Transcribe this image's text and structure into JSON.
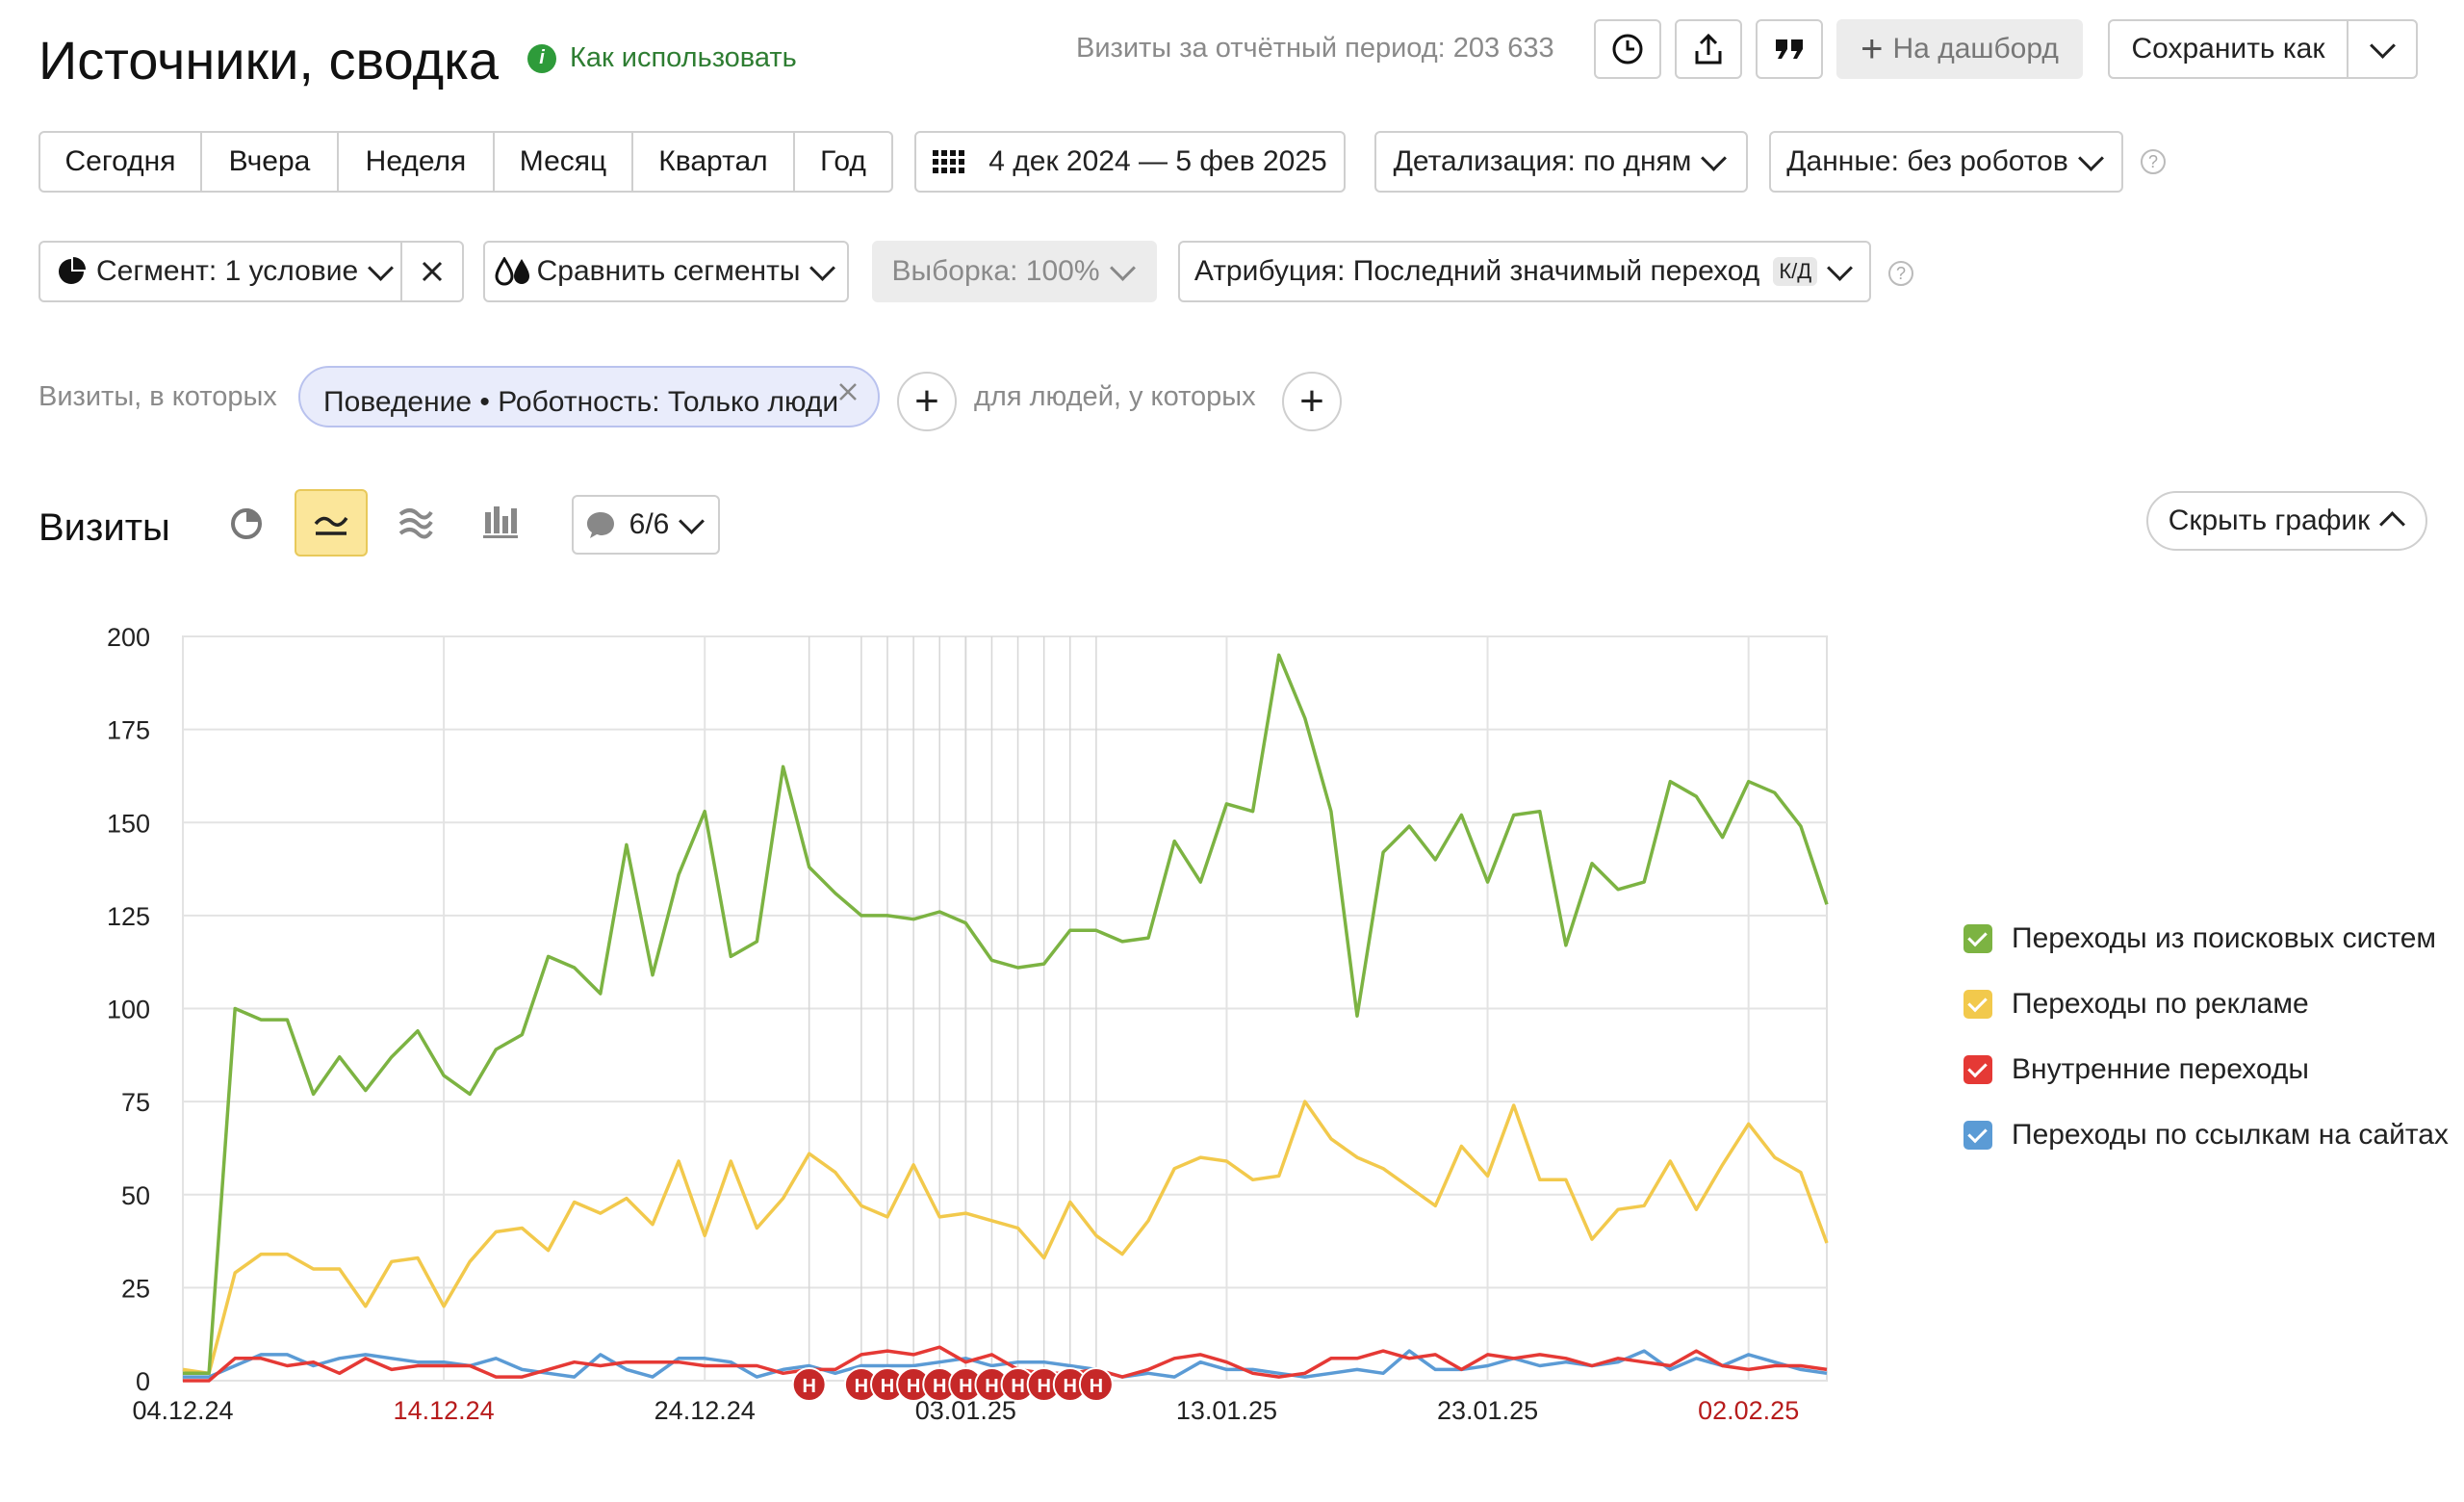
{
  "header": {
    "title": "Источники, сводка",
    "how_to_use": "Как использовать",
    "visits_summary": "Визиты за отчётный период: 203 633",
    "to_dashboard": "На дашборд",
    "save_as": "Сохранить как"
  },
  "period_tabs": [
    "Сегодня",
    "Вчера",
    "Неделя",
    "Месяц",
    "Квартал",
    "Год"
  ],
  "date_range": "4 дек 2024 — 5 фев 2025",
  "detail": "Детализация: по дням",
  "data_filter": "Данные: без роботов",
  "segment": "Сегмент: 1 условие",
  "compare": "Сравнить сегменты",
  "sample": "Выборка: 100%",
  "attribution": "Атрибуция: Последний значимый переход",
  "attribution_badge": "К/Д",
  "filter_row": {
    "prefix": "Визиты, в которых",
    "chip": "Поведение • Роботность: Только люди",
    "middle": "для людей, у которых"
  },
  "chart_header": {
    "title": "Визиты",
    "annotations_count": "6/6",
    "hide_chart": "Скрыть график"
  },
  "colors": {
    "search": "#7cb342",
    "ads": "#f2c94c",
    "internal": "#e53935",
    "links": "#5b9bd5",
    "accent_green": "#2e7d32",
    "holiday": "#c62828"
  },
  "chart_data": {
    "type": "line",
    "x_start": "2024-12-04",
    "x_ticks": [
      "04.12.24",
      "14.12.24",
      "24.12.24",
      "03.01.25",
      "13.01.25",
      "23.01.25",
      "02.02.25"
    ],
    "y_ticks": [
      "0",
      "25",
      "50",
      "75",
      "100",
      "125",
      "150",
      "175",
      "200"
    ],
    "ylim": [
      0,
      200
    ],
    "holiday_marker": "Н",
    "series": [
      {
        "name": "Переходы из поисковых систем",
        "color": "#7cb342",
        "values": [
          2,
          2,
          100,
          97,
          97,
          77,
          87,
          78,
          87,
          94,
          82,
          77,
          89,
          93,
          114,
          111,
          104,
          144,
          109,
          136,
          153,
          114,
          118,
          165,
          138,
          131,
          125,
          125,
          124,
          126,
          123,
          113,
          111,
          112,
          121,
          121,
          118,
          119,
          145,
          134,
          155,
          153,
          195,
          178,
          153,
          98,
          142,
          149,
          140,
          152,
          134,
          152,
          153,
          117,
          139,
          132,
          134,
          161,
          157,
          146,
          161,
          158,
          149,
          128
        ]
      },
      {
        "name": "Переходы по рекламе",
        "color": "#f2c94c",
        "values": [
          3,
          2,
          29,
          34,
          34,
          30,
          30,
          20,
          32,
          33,
          20,
          32,
          40,
          41,
          35,
          48,
          45,
          49,
          42,
          59,
          39,
          59,
          41,
          49,
          61,
          56,
          47,
          44,
          58,
          44,
          45,
          43,
          41,
          33,
          48,
          39,
          34,
          43,
          57,
          60,
          59,
          54,
          55,
          75,
          65,
          60,
          57,
          52,
          47,
          63,
          55,
          74,
          54,
          54,
          38,
          46,
          47,
          59,
          46,
          58,
          69,
          60,
          56,
          37
        ]
      },
      {
        "name": "Внутренние переходы",
        "color": "#e53935",
        "values": [
          0,
          0,
          6,
          6,
          4,
          5,
          2,
          6,
          3,
          4,
          4,
          4,
          1,
          1,
          3,
          5,
          4,
          5,
          5,
          5,
          4,
          4,
          4,
          2,
          3,
          3,
          7,
          8,
          7,
          9,
          5,
          7,
          3,
          2,
          2,
          3,
          1,
          3,
          6,
          7,
          5,
          2,
          1,
          2,
          6,
          6,
          8,
          6,
          7,
          3,
          7,
          6,
          7,
          6,
          4,
          6,
          5,
          4,
          8,
          4,
          3,
          4,
          4,
          3
        ]
      },
      {
        "name": "Переходы по ссылкам на сайтах",
        "color": "#5b9bd5",
        "values": [
          1,
          1,
          4,
          7,
          7,
          4,
          6,
          7,
          6,
          5,
          5,
          4,
          6,
          3,
          2,
          1,
          7,
          3,
          1,
          6,
          6,
          5,
          1,
          3,
          4,
          2,
          4,
          4,
          4,
          5,
          6,
          4,
          5,
          5,
          4,
          3,
          1,
          2,
          1,
          5,
          3,
          3,
          2,
          1,
          2,
          3,
          2,
          8,
          3,
          3,
          4,
          6,
          4,
          5,
          4,
          5,
          8,
          3,
          6,
          4,
          7,
          5,
          3,
          2
        ]
      }
    ]
  }
}
